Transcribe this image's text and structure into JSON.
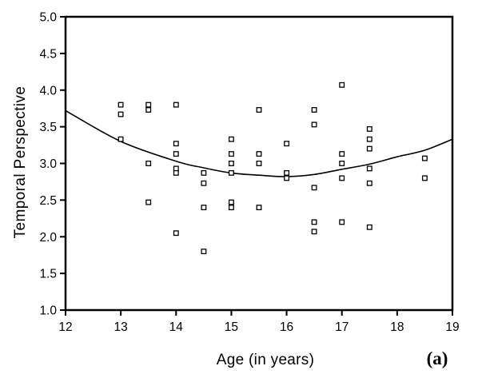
{
  "figure_label": "(a)",
  "chart_data": {
    "type": "scatter",
    "title": "",
    "xlabel": "Age (in years)",
    "ylabel": "Temporal Perspective",
    "xlim": [
      12,
      19
    ],
    "ylim": [
      1.0,
      5.0
    ],
    "grid": false,
    "legend": "none",
    "marker_style": "open-square",
    "marker_color": "#000000",
    "curve_color": "#000000",
    "background_color": "#ffffff",
    "x_ticks": [
      {
        "value": 12,
        "label": "12"
      },
      {
        "value": 13,
        "label": "13"
      },
      {
        "value": 14,
        "label": "14"
      },
      {
        "value": 15,
        "label": "15"
      },
      {
        "value": 16,
        "label": "16"
      },
      {
        "value": 17,
        "label": "17"
      },
      {
        "value": 18,
        "label": "18"
      },
      {
        "value": 19,
        "label": "19"
      }
    ],
    "y_ticks": [
      {
        "value": 5.0,
        "label": "5.0"
      },
      {
        "value": 4.5,
        "label": "4.5"
      },
      {
        "value": 4.0,
        "label": "4.0"
      },
      {
        "value": 3.5,
        "label": "3.5"
      },
      {
        "value": 3.0,
        "label": "3.0"
      },
      {
        "value": 2.5,
        "label": "2.5"
      },
      {
        "value": 2.0,
        "label": "2.0"
      },
      {
        "value": 1.5,
        "label": "1.5"
      },
      {
        "value": 1.0,
        "label": "1.0"
      }
    ],
    "points": [
      [
        13,
        3.8
      ],
      [
        13,
        3.67
      ],
      [
        13,
        3.33
      ],
      [
        13.5,
        3.8
      ],
      [
        13.5,
        3.73
      ],
      [
        13.5,
        3.0
      ],
      [
        13.5,
        2.47
      ],
      [
        14,
        3.8
      ],
      [
        14,
        3.27
      ],
      [
        14,
        3.13
      ],
      [
        14,
        2.93
      ],
      [
        14,
        2.87
      ],
      [
        14,
        2.05
      ],
      [
        14.5,
        2.87
      ],
      [
        14.5,
        2.73
      ],
      [
        14.5,
        2.4
      ],
      [
        14.5,
        1.8
      ],
      [
        15,
        3.33
      ],
      [
        15,
        3.13
      ],
      [
        15,
        3.0
      ],
      [
        15,
        2.87
      ],
      [
        15,
        2.47
      ],
      [
        15,
        2.4
      ],
      [
        15.5,
        3.73
      ],
      [
        15.5,
        3.13
      ],
      [
        15.5,
        3.0
      ],
      [
        15.5,
        2.4
      ],
      [
        16,
        3.27
      ],
      [
        16,
        2.87
      ],
      [
        16,
        2.8
      ],
      [
        16.5,
        3.73
      ],
      [
        16.5,
        3.53
      ],
      [
        16.5,
        2.67
      ],
      [
        16.5,
        2.2
      ],
      [
        16.5,
        2.07
      ],
      [
        17,
        4.07
      ],
      [
        17,
        3.13
      ],
      [
        17,
        3.0
      ],
      [
        17,
        2.8
      ],
      [
        17,
        2.2
      ],
      [
        17.5,
        3.47
      ],
      [
        17.5,
        3.33
      ],
      [
        17.5,
        3.2
      ],
      [
        17.5,
        2.93
      ],
      [
        17.5,
        2.73
      ],
      [
        17.5,
        2.13
      ],
      [
        18.5,
        3.07
      ],
      [
        18.5,
        2.8
      ]
    ],
    "fit_curve": {
      "shape": "u-shaped quadratic / loess fit",
      "points": [
        [
          12,
          3.72
        ],
        [
          13,
          3.3
        ],
        [
          14,
          3.03
        ],
        [
          14.5,
          2.94
        ],
        [
          15,
          2.87
        ],
        [
          15.5,
          2.84
        ],
        [
          16,
          2.82
        ],
        [
          16.5,
          2.85
        ],
        [
          17,
          2.92
        ],
        [
          17.5,
          2.99
        ],
        [
          18,
          3.09
        ],
        [
          18.5,
          3.18
        ],
        [
          19,
          3.33
        ]
      ]
    }
  }
}
